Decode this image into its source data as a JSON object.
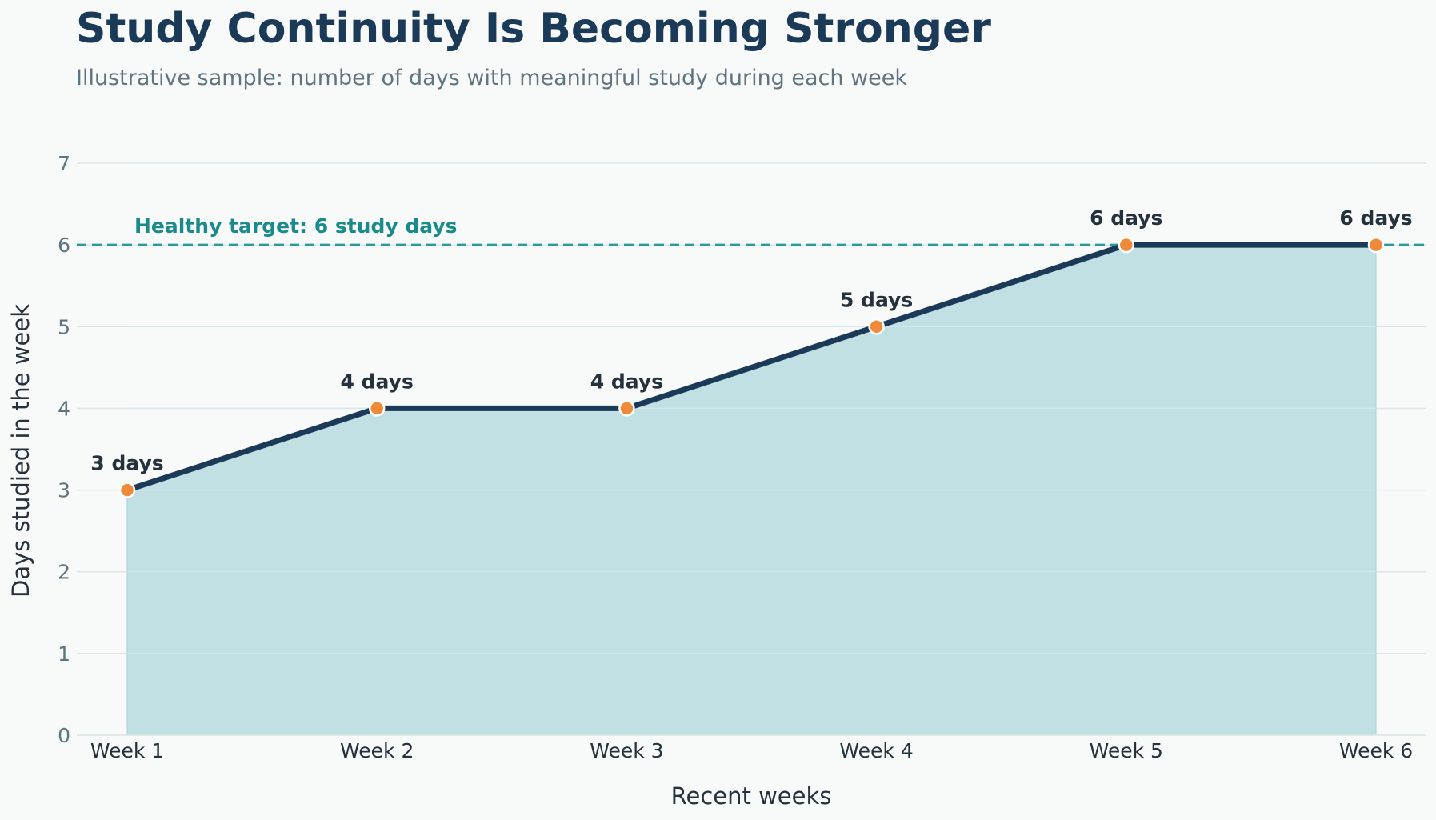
{
  "chart_data": {
    "type": "area",
    "title": "Study Continuity Is Becoming Stronger",
    "subtitle": "Illustrative sample: number of days with meaningful study during each week",
    "xlabel": "Recent weeks",
    "ylabel": "Days studied in the week",
    "categories": [
      "Week 1",
      "Week 2",
      "Week 3",
      "Week 4",
      "Week 5",
      "Week 6"
    ],
    "values": [
      3,
      4,
      4,
      5,
      6,
      6
    ],
    "data_labels": [
      "3 days",
      "4 days",
      "4 days",
      "5 days",
      "6 days",
      "6 days"
    ],
    "ylim": [
      0,
      7
    ],
    "yticks": [
      0,
      1,
      2,
      3,
      4,
      5,
      6,
      7
    ],
    "grid": true,
    "target": {
      "value": 6,
      "label": "Healthy target: 6 study days"
    },
    "colors": {
      "line": "#1b3a57",
      "fill": "#c1e0e4",
      "marker": "#ef8a3a",
      "target": "#2a9a9a",
      "grid": "#dde5e8"
    }
  }
}
